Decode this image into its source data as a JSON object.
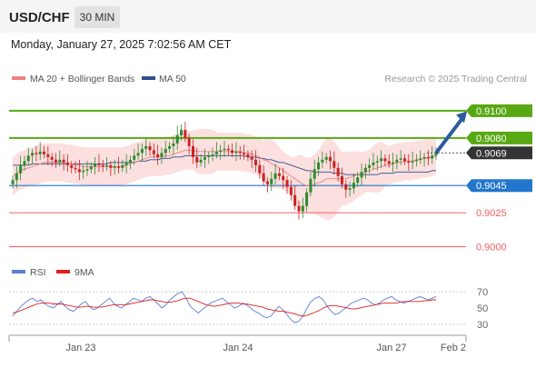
{
  "header": {
    "symbol": "USD/CHF",
    "timeframe": "30 MIN",
    "datetime": "Monday, January 27, 2025 7:02:56 AM CET"
  },
  "legend": {
    "ma20_label": "MA 20 + Bollinger Bands",
    "ma50_label": "MA 50",
    "credit": "Research © 2025 Trading Central",
    "ma20_color": "#f08080",
    "ma50_color": "#2b4f8f"
  },
  "rsi_legend": {
    "rsi_label": "RSI",
    "ma_label": "9MA",
    "rsi_color": "#5b7fd6",
    "ma_color": "#e02020"
  },
  "colors": {
    "resistance": "#58a813",
    "support": "#2277cc",
    "minor": "#f06060",
    "current": "#333333",
    "bull_candle": "#2e8b2e",
    "bear_candle": "#cc2222",
    "band_fill": "#fbd9d9",
    "arrow": "#2b5a9e"
  },
  "chart_data": {
    "type": "candlestick",
    "symbol": "USD/CHF",
    "x_tick_labels": [
      "Jan 23",
      "Jan 24",
      "Jan 27",
      "Feb 2"
    ],
    "ylim": [
      0.8993,
      0.9116
    ],
    "levels": [
      {
        "label": "0.9100",
        "value": 0.91,
        "kind": "resistance"
      },
      {
        "label": "0.9080",
        "value": 0.908,
        "kind": "resistance"
      },
      {
        "label": "0.9069",
        "value": 0.9069,
        "kind": "current"
      },
      {
        "label": "0.9045",
        "value": 0.9045,
        "kind": "support"
      },
      {
        "label": "0.9025",
        "value": 0.9025,
        "kind": "minor"
      },
      {
        "label": "0.9000",
        "value": 0.9,
        "kind": "minor"
      }
    ],
    "close": [
      0.9049,
      0.9054,
      0.906,
      0.9063,
      0.9067,
      0.9069,
      0.9068,
      0.907,
      0.9068,
      0.9066,
      0.9064,
      0.9062,
      0.9064,
      0.9062,
      0.906,
      0.9058,
      0.9057,
      0.9055,
      0.9056,
      0.9057,
      0.9059,
      0.9061,
      0.906,
      0.9059,
      0.906,
      0.9058,
      0.9059,
      0.9058,
      0.906,
      0.9062,
      0.9064,
      0.9067,
      0.9069,
      0.9072,
      0.9074,
      0.9071,
      0.9068,
      0.9066,
      0.9069,
      0.9072,
      0.9074,
      0.9076,
      0.9082,
      0.9086,
      0.908,
      0.9074,
      0.9066,
      0.9062,
      0.9064,
      0.9066,
      0.9067,
      0.9068,
      0.907,
      0.9071,
      0.9072,
      0.9071,
      0.9069,
      0.907,
      0.9069,
      0.9068,
      0.9066,
      0.9064,
      0.906,
      0.9054,
      0.9048,
      0.9046,
      0.905,
      0.9054,
      0.9052,
      0.9049,
      0.9044,
      0.9038,
      0.903,
      0.9026,
      0.903,
      0.904,
      0.905,
      0.9057,
      0.9062,
      0.9064,
      0.9066,
      0.9063,
      0.9058,
      0.9052,
      0.9046,
      0.9042,
      0.9043,
      0.9047,
      0.9051,
      0.9055,
      0.9058,
      0.906,
      0.9062,
      0.9063,
      0.9065,
      0.9063,
      0.9061,
      0.9062,
      0.9064,
      0.9065,
      0.9063,
      0.9062,
      0.9063,
      0.9064,
      0.9065,
      0.9066,
      0.9065,
      0.9067,
      0.9069
    ],
    "ma20": [
      0.9052,
      0.9054,
      0.9056,
      0.9057,
      0.9058,
      0.9059,
      0.906,
      0.9061,
      0.9062,
      0.9062,
      0.9062,
      0.9062,
      0.9062,
      0.9062,
      0.9061,
      0.9061,
      0.906,
      0.906,
      0.9059,
      0.9059,
      0.9059,
      0.9059,
      0.9059,
      0.9059,
      0.9059,
      0.9059,
      0.9059,
      0.9059,
      0.9059,
      0.906,
      0.9061,
      0.9062,
      0.9063,
      0.9064,
      0.9065,
      0.9066,
      0.9066,
      0.9066,
      0.9066,
      0.9067,
      0.9067,
      0.9068,
      0.9069,
      0.907,
      0.9071,
      0.9071,
      0.9071,
      0.907,
      0.907,
      0.907,
      0.907,
      0.907,
      0.907,
      0.907,
      0.907,
      0.907,
      0.907,
      0.907,
      0.907,
      0.9069,
      0.9069,
      0.9068,
      0.9067,
      0.9066,
      0.9064,
      0.9063,
      0.9061,
      0.906,
      0.9058,
      0.9056,
      0.9054,
      0.9052,
      0.905,
      0.9048,
      0.9046,
      0.9045,
      0.9045,
      0.9046,
      0.9047,
      0.9048,
      0.905,
      0.905,
      0.905,
      0.905,
      0.905,
      0.905,
      0.9051,
      0.9052,
      0.9053,
      0.9054,
      0.9055,
      0.9056,
      0.9057,
      0.9058,
      0.9059,
      0.906,
      0.906,
      0.9061,
      0.9062,
      0.9062,
      0.9063,
      0.9063,
      0.9063,
      0.9064,
      0.9064,
      0.9065,
      0.9065,
      0.9066,
      0.9067
    ],
    "ma50": [
      0.906,
      0.906,
      0.906,
      0.906,
      0.906,
      0.9061,
      0.9061,
      0.9061,
      0.9061,
      0.9061,
      0.9061,
      0.9061,
      0.9061,
      0.9061,
      0.9061,
      0.9061,
      0.9061,
      0.9061,
      0.9061,
      0.9061,
      0.9061,
      0.9061,
      0.9061,
      0.9061,
      0.9061,
      0.9062,
      0.9062,
      0.9062,
      0.9062,
      0.9062,
      0.9062,
      0.9062,
      0.9063,
      0.9063,
      0.9063,
      0.9064,
      0.9064,
      0.9064,
      0.9065,
      0.9065,
      0.9065,
      0.9066,
      0.9066,
      0.9066,
      0.9067,
      0.9067,
      0.9067,
      0.9067,
      0.9067,
      0.9067,
      0.9067,
      0.9067,
      0.9067,
      0.9067,
      0.9067,
      0.9067,
      0.9067,
      0.9067,
      0.9067,
      0.9067,
      0.9066,
      0.9066,
      0.9066,
      0.9065,
      0.9065,
      0.9064,
      0.9064,
      0.9063,
      0.9062,
      0.9062,
      0.9061,
      0.906,
      0.9059,
      0.9058,
      0.9057,
      0.9056,
      0.9056,
      0.9055,
      0.9055,
      0.9055,
      0.9055,
      0.9055,
      0.9054,
      0.9054,
      0.9054,
      0.9053,
      0.9053,
      0.9053,
      0.9053,
      0.9053,
      0.9053,
      0.9053,
      0.9053,
      0.9053,
      0.9054,
      0.9054,
      0.9054,
      0.9054,
      0.9055,
      0.9055,
      0.9055,
      0.9055,
      0.9055,
      0.9055,
      0.9055,
      0.9055,
      0.9055,
      0.9056,
      0.9056
    ],
    "forecast_target": 0.9097,
    "rsi": {
      "ylim": [
        20,
        80
      ],
      "ticks": [
        70,
        50,
        30
      ],
      "levels": [
        70,
        30
      ],
      "rsi_values": [
        40,
        46,
        52,
        56,
        60,
        62,
        58,
        60,
        55,
        52,
        50,
        54,
        58,
        52,
        48,
        46,
        50,
        55,
        58,
        52,
        48,
        50,
        54,
        58,
        62,
        56,
        52,
        50,
        54,
        58,
        62,
        60,
        58,
        62,
        64,
        60,
        55,
        50,
        54,
        60,
        64,
        68,
        70,
        62,
        52,
        48,
        44,
        48,
        52,
        56,
        58,
        60,
        62,
        58,
        54,
        50,
        52,
        56,
        54,
        50,
        46,
        44,
        40,
        38,
        40,
        46,
        52,
        48,
        42,
        36,
        32,
        34,
        40,
        50,
        58,
        62,
        64,
        60,
        52,
        46,
        42,
        44,
        48,
        52,
        56,
        58,
        60,
        62,
        60,
        56,
        54,
        56,
        60,
        62,
        64,
        60,
        58,
        56,
        58,
        60,
        62,
        64,
        62,
        60,
        62,
        64
      ],
      "ma_values": [
        44,
        45,
        47,
        49,
        51,
        53,
        55,
        56,
        56,
        56,
        55,
        55,
        55,
        54,
        53,
        52,
        51,
        51,
        52,
        52,
        51,
        51,
        51,
        52,
        53,
        54,
        54,
        54,
        54,
        55,
        56,
        57,
        58,
        59,
        60,
        60,
        59,
        58,
        57,
        57,
        58,
        59,
        61,
        62,
        62,
        60,
        58,
        56,
        54,
        53,
        52,
        53,
        54,
        55,
        56,
        56,
        56,
        55,
        55,
        54,
        53,
        52,
        51,
        49,
        48,
        47,
        46,
        46,
        45,
        44,
        43,
        41,
        40,
        41,
        43,
        45,
        47,
        50,
        52,
        53,
        53,
        52,
        51,
        50,
        49,
        49,
        50,
        51,
        52,
        53,
        54,
        55,
        56,
        56,
        56,
        56,
        57,
        58,
        58,
        58,
        58,
        58,
        59,
        59,
        60,
        60
      ]
    }
  }
}
